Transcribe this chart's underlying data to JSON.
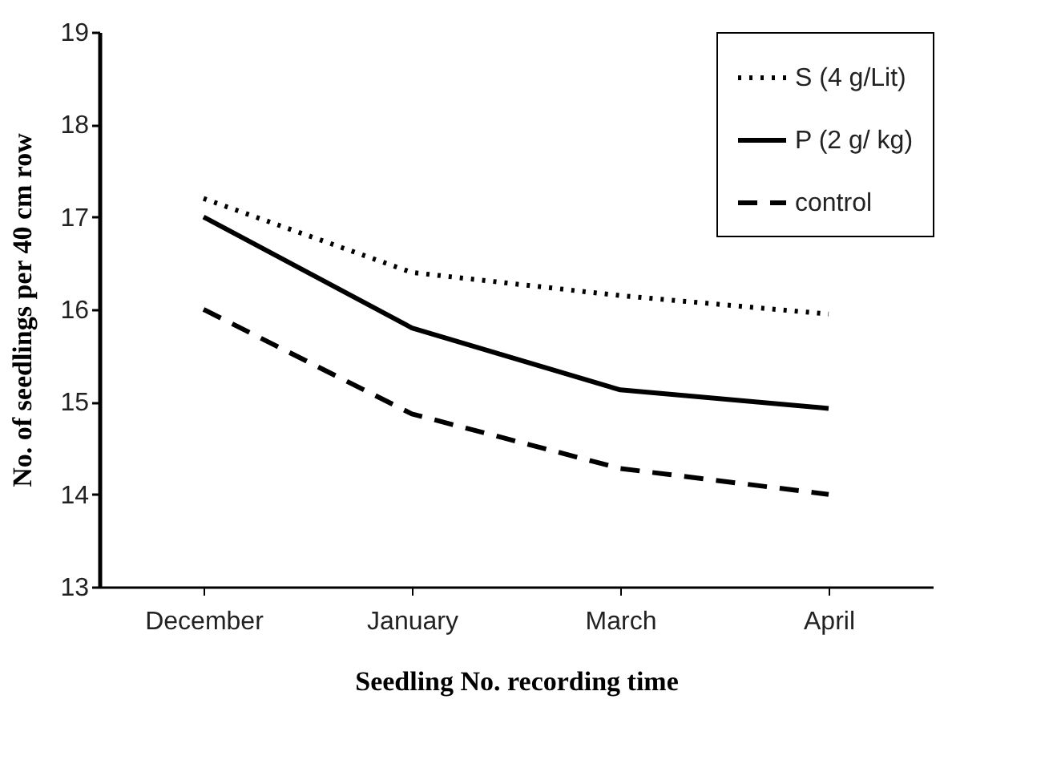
{
  "chart_data": {
    "type": "line",
    "xlabel": "Seedling No. recording time",
    "ylabel": "No. of seedlings per 40 cm row",
    "categories": [
      "December",
      "January",
      "March",
      "April"
    ],
    "series": [
      {
        "name": "S (4 g/Lit)",
        "color": "#000000",
        "line_style": "dotted",
        "values": [
          17.2,
          16.4,
          16.15,
          15.95
        ]
      },
      {
        "name": "P (2 g/ kg)",
        "color": "#000000",
        "line_style": "solid",
        "values": [
          17.0,
          15.8,
          15.13,
          14.93
        ]
      },
      {
        "name": "control",
        "color": "#000000",
        "line_style": "dashed",
        "values": [
          16.0,
          14.87,
          14.28,
          14.0
        ]
      }
    ],
    "ylim": [
      13,
      19
    ],
    "yticks": [
      13,
      14,
      15,
      16,
      17,
      18,
      19
    ],
    "grid": false,
    "legend": "top right",
    "marker": "none"
  }
}
